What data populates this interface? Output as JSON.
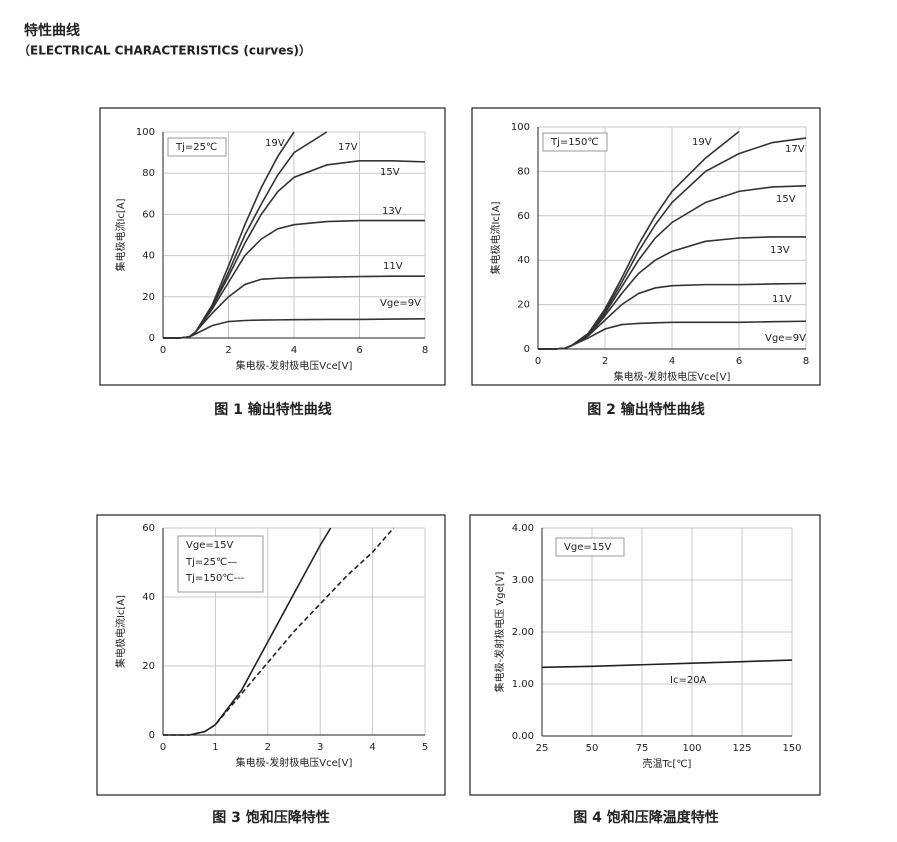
{
  "header": {
    "title": "特性曲线",
    "subtitle": "（ELECTRICAL CHARACTERISTICS (curves)）"
  },
  "chart_data": [
    {
      "type": "line",
      "caption": "图 1 输出特性曲线",
      "annotation": "Tj=25℃",
      "x_label": "集电极-发射极电压Vce[V]",
      "y_label": "集电极电流Ic[A]",
      "xlim": [
        0,
        8
      ],
      "ylim": [
        0,
        100
      ],
      "xticks": [
        0,
        2,
        4,
        6,
        8
      ],
      "yticks": [
        0,
        20,
        40,
        60,
        80,
        100
      ],
      "grid": true,
      "x": [
        0,
        0.5,
        0.8,
        1,
        1.5,
        2,
        2.5,
        3,
        3.5,
        4,
        5,
        6,
        7,
        8
      ],
      "series": [
        {
          "name": "19V",
          "color": "#333333",
          "values": [
            0,
            0,
            0.5,
            3,
            16,
            35,
            55,
            73,
            88,
            100,
            null,
            null,
            null,
            null
          ]
        },
        {
          "name": "17V",
          "color": "#333333",
          "values": [
            0,
            0,
            0.5,
            3,
            15,
            32,
            50,
            65,
            79,
            90,
            100,
            null,
            null,
            null
          ]
        },
        {
          "name": "15V",
          "color": "#333333",
          "values": [
            0,
            0,
            0.5,
            3,
            15,
            30,
            46,
            60,
            71,
            78,
            84,
            86,
            86,
            85.5
          ]
        },
        {
          "name": "13V",
          "color": "#333333",
          "values": [
            0,
            0,
            0.5,
            3,
            14,
            27,
            40,
            48,
            53,
            55,
            56.5,
            57,
            57,
            57
          ]
        },
        {
          "name": "11V",
          "color": "#333333",
          "values": [
            0,
            0,
            0.5,
            3,
            12,
            20,
            26,
            28.5,
            29,
            29.3,
            29.5,
            29.8,
            30,
            30
          ]
        },
        {
          "name": "Vge=9V",
          "color": "#333333",
          "values": [
            0,
            0,
            0.5,
            2,
            6,
            8,
            8.5,
            8.7,
            8.8,
            8.9,
            9,
            9,
            9.2,
            9.3
          ]
        }
      ]
    },
    {
      "type": "line",
      "caption": "图 2 输出特性曲线",
      "annotation": "Tj=150℃",
      "x_label": "集电极-发射极电压Vce[V]",
      "y_label": "集电极电流Ic[A]",
      "xlim": [
        0,
        8
      ],
      "ylim": [
        0,
        100
      ],
      "xticks": [
        0,
        2,
        4,
        6,
        8
      ],
      "yticks": [
        0,
        20,
        40,
        60,
        80,
        100
      ],
      "grid": true,
      "x": [
        0,
        0.5,
        0.8,
        1,
        1.5,
        2,
        2.5,
        3,
        3.5,
        4,
        5,
        6,
        7,
        8
      ],
      "series": [
        {
          "name": "19V",
          "color": "#333333",
          "values": [
            0,
            0,
            0.3,
            1.5,
            7,
            18,
            32,
            47,
            60,
            71,
            86,
            98,
            null,
            null
          ]
        },
        {
          "name": "17V",
          "color": "#333333",
          "values": [
            0,
            0,
            0.3,
            1.5,
            7,
            17,
            30,
            44,
            56,
            66,
            80,
            88,
            93,
            95
          ]
        },
        {
          "name": "15V",
          "color": "#333333",
          "values": [
            0,
            0,
            0.3,
            1.5,
            6,
            16,
            28,
            40,
            50,
            57,
            66,
            71,
            73,
            73.5
          ]
        },
        {
          "name": "13V",
          "color": "#333333",
          "values": [
            0,
            0,
            0.3,
            1.5,
            6,
            15,
            25,
            34,
            40,
            44,
            48.5,
            50,
            50.5,
            50.5
          ]
        },
        {
          "name": "11V",
          "color": "#333333",
          "values": [
            0,
            0,
            0.3,
            1.5,
            6,
            13,
            20,
            25,
            27.5,
            28.5,
            29,
            29,
            29.3,
            29.5
          ]
        },
        {
          "name": "Vge=9V",
          "color": "#333333",
          "values": [
            0,
            0,
            0.3,
            1.5,
            5,
            9,
            11,
            11.5,
            11.8,
            12,
            12,
            12,
            12.3,
            12.5
          ]
        }
      ]
    },
    {
      "type": "line",
      "caption": "图 3 饱和压降特性",
      "annotation": "Vge=15V",
      "x_label": "集电极-发射极电压Vce[V]",
      "y_label": "集电极电流Ic[A]",
      "xlim": [
        0,
        5
      ],
      "ylim": [
        0,
        60
      ],
      "xticks": [
        0,
        1,
        2,
        3,
        4,
        5
      ],
      "yticks": [
        0,
        20,
        40,
        60
      ],
      "grid": true,
      "series": [
        {
          "name": "Tj=25℃—",
          "color": "#222222",
          "style": "solid",
          "x": [
            0,
            0.5,
            0.8,
            1,
            1.5,
            2,
            2.5,
            3,
            3.2
          ],
          "values": [
            0,
            0,
            1,
            3,
            13,
            27,
            41,
            55,
            60
          ]
        },
        {
          "name": "Tj=150℃---",
          "color": "#222222",
          "style": "dashed",
          "x": [
            0,
            0.5,
            0.8,
            1,
            1.5,
            2,
            2.5,
            3,
            3.5,
            4,
            4.4
          ],
          "values": [
            0,
            0,
            1,
            3,
            12,
            21,
            30,
            38,
            46,
            53,
            60
          ]
        }
      ]
    },
    {
      "type": "line",
      "caption": "图 4 饱和压降温度特性",
      "annotation": "Vge=15V",
      "x_label": "壳温Tc[℃]",
      "y_label": "集电极-发射极电压 Vge[V]",
      "xlim": [
        25,
        150
      ],
      "ylim": [
        0,
        4
      ],
      "xticks": [
        25,
        50,
        75,
        100,
        125,
        150
      ],
      "yticks": [
        {
          "value": 0,
          "label": "0.00"
        },
        {
          "value": 1,
          "label": "1.00"
        },
        {
          "value": 2,
          "label": "2.00"
        },
        {
          "value": 3,
          "label": "3.00"
        },
        {
          "value": 4,
          "label": "4.00"
        }
      ],
      "grid": true,
      "x": [
        25,
        50,
        75,
        100,
        125,
        150
      ],
      "series": [
        {
          "name": "Ic=20A",
          "color": "#222222",
          "values": [
            1.32,
            1.34,
            1.37,
            1.4,
            1.43,
            1.46
          ]
        }
      ]
    }
  ]
}
